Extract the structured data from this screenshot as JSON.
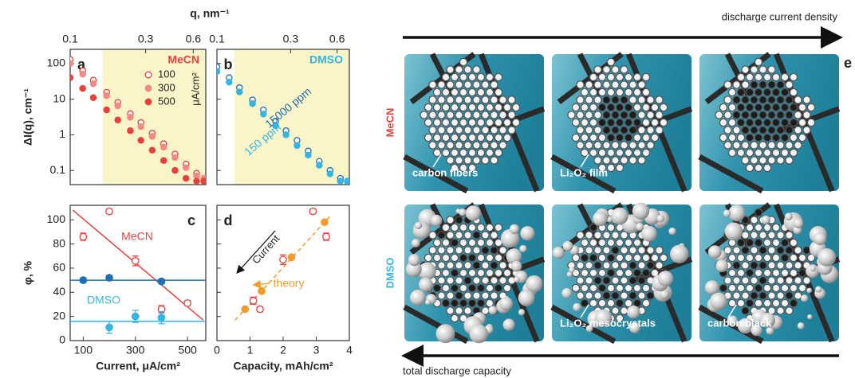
{
  "chart_data": [
    {
      "type": "scatter",
      "label": "a",
      "xlabel": "q, nm⁻¹",
      "ylabel": "ΔI(q), cm⁻¹",
      "xscale": "log",
      "yscale": "log",
      "xaxis_position": "top",
      "xlim": [
        0.1,
        0.72
      ],
      "xticks": [
        0.1,
        0.3,
        0.6
      ],
      "ylim": [
        0.04,
        250
      ],
      "yticks": [
        0.1,
        1,
        10,
        100
      ],
      "show_ytick_labels": true,
      "shaded_xrange": [
        0.16,
        0.72
      ],
      "shade_color": "#faf5c8",
      "legend_title": "MeCN",
      "legend_unit": "μA/cm²",
      "x": [
        0.1,
        0.12,
        0.14,
        0.17,
        0.2,
        0.24,
        0.28,
        0.33,
        0.39,
        0.46,
        0.54,
        0.63,
        0.7
      ],
      "series": [
        {
          "name": "100",
          "color": "#e8413c",
          "marker": "open",
          "values": [
            130,
            63,
            34,
            15.6,
            8.1,
            3.9,
            2.2,
            1.1,
            0.56,
            0.29,
            0.15,
            0.083,
            0.06
          ]
        },
        {
          "name": "300",
          "color": "#f08a85",
          "marker": "filled",
          "values": [
            100,
            50,
            27,
            12.5,
            6.5,
            3.1,
            1.7,
            0.9,
            0.45,
            0.23,
            0.12,
            0.07,
            0.06
          ]
        },
        {
          "name": "500",
          "color": "#e8413c",
          "marker": "filled",
          "values": [
            40,
            20,
            11,
            5,
            2.6,
            1.3,
            0.7,
            0.37,
            0.19,
            0.1,
            0.06,
            0.05,
            0.05
          ]
        }
      ]
    },
    {
      "type": "scatter",
      "label": "b",
      "xscale": "log",
      "yscale": "log",
      "xaxis_position": "top",
      "xlim": [
        0.1,
        0.72
      ],
      "xticks": [
        0.1,
        0.3,
        0.6
      ],
      "ylim": [
        0.04,
        250
      ],
      "yticks": [
        0.1,
        1,
        10,
        100
      ],
      "show_ytick_labels": false,
      "shaded_xrange": [
        0.13,
        0.72
      ],
      "shade_color": "#faf5c8",
      "legend_title": "DMSO",
      "legend_title_color": "#33b5e5",
      "x": [
        0.1,
        0.12,
        0.14,
        0.17,
        0.2,
        0.24,
        0.28,
        0.33,
        0.39,
        0.46,
        0.54,
        0.63,
        0.7
      ],
      "series": [
        {
          "name": "15000 ppm",
          "color": "#1f6fb4",
          "marker": "open",
          "values": [
            80,
            40,
            21,
            9.5,
            5,
            2.4,
            1.3,
            0.7,
            0.35,
            0.18,
            0.1,
            0.06,
            0.05
          ]
        },
        {
          "name": "150 ppm",
          "color": "#33b5e5",
          "marker": "filled",
          "values": [
            60,
            30,
            16,
            7.5,
            3.8,
            1.8,
            1,
            0.5,
            0.27,
            0.14,
            0.08,
            0.05,
            0.05
          ]
        }
      ]
    },
    {
      "type": "scatter",
      "label": "c",
      "xlabel": "Current, μA/cm²",
      "ylabel": "φ, %",
      "xlim": [
        50,
        570
      ],
      "xticks": [
        100,
        300,
        500
      ],
      "ylim": [
        0,
        112
      ],
      "yticks": [
        0,
        20,
        40,
        60,
        80,
        100
      ],
      "show_ytick_labels": true,
      "series": [
        {
          "name": "MeCN",
          "color": "#e8413c",
          "marker": "open",
          "x": [
            100,
            200,
            300,
            400,
            500
          ],
          "values": [
            86,
            107,
            66,
            26,
            31
          ],
          "errors": [
            3,
            2,
            4,
            3,
            2
          ]
        },
        {
          "color": "#1f6fb4",
          "marker": "filled",
          "x": [
            100,
            200,
            400
          ],
          "values": [
            50,
            52,
            49
          ],
          "errors": [
            2,
            2,
            2
          ]
        },
        {
          "name": "DMSO",
          "color": "#33b5e5",
          "marker": "filled",
          "x": [
            200,
            300,
            400
          ],
          "values": [
            11,
            20,
            19
          ],
          "errors": [
            5,
            5,
            5
          ]
        }
      ],
      "lines": [
        {
          "color": "#e8413c",
          "dash": false,
          "x": [
            60,
            560
          ],
          "y": [
            108,
            17
          ]
        },
        {
          "color": "#1f6fb4",
          "dash": false,
          "x": [
            50,
            570
          ],
          "y": [
            50,
            50
          ]
        },
        {
          "color": "#33b5e5",
          "dash": false,
          "x": [
            50,
            570
          ],
          "y": [
            16,
            16
          ]
        }
      ]
    },
    {
      "type": "scatter",
      "label": "d",
      "xlabel": "Capacity, mAh/cm²",
      "xlim": [
        0,
        4
      ],
      "xticks": [
        0,
        1,
        2,
        3,
        4
      ],
      "ylim": [
        0,
        112
      ],
      "yticks": [
        0,
        20,
        40,
        60,
        80,
        100
      ],
      "show_ytick_labels": false,
      "annotations": [
        "Current"
      ],
      "series": [
        {
          "color": "#e8413c",
          "marker": "open",
          "x": [
            1.1,
            1.3,
            2.0,
            2.9,
            3.3
          ],
          "values": [
            33,
            26,
            67,
            107,
            86
          ],
          "errors": [
            3,
            2,
            4,
            2,
            3
          ]
        },
        {
          "name": "theory",
          "color": "#f39a2b",
          "marker": "filled",
          "x": [
            0.85,
            1.35,
            2.25,
            3.25
          ],
          "values": [
            26,
            41,
            69,
            98
          ]
        }
      ],
      "lines": [
        {
          "color": "#f39a2b",
          "dash": true,
          "x": [
            0.55,
            3.45
          ],
          "y": [
            17,
            104
          ]
        }
      ]
    }
  ],
  "illustration": {
    "label": "e",
    "top_arrow": "discharge current density",
    "bottom_arrow": "total discharge capacity",
    "rows": [
      {
        "label": "MeCN",
        "color": "#e8413c",
        "captions": [
          "carbon fibers",
          "Li₂O₂ film"
        ]
      },
      {
        "label": "DMSO",
        "color": "#33b5e5",
        "captions": [
          "Li₂O₂ mesocrystals",
          "carbon black"
        ]
      }
    ]
  }
}
